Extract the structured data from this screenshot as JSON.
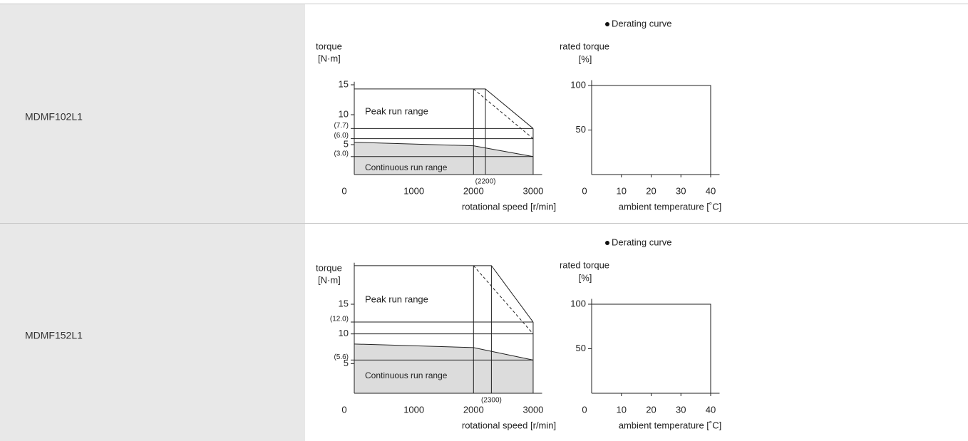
{
  "table": {
    "rows": [
      {
        "model": "MDMF102L1",
        "torque_chart": {
          "type": "line",
          "y_label": "torque",
          "y_unit": "[N·m]",
          "x_label": "rotational speed [r/min]",
          "xlim": [
            0,
            3150
          ],
          "ylim": [
            0,
            15.5
          ],
          "xticks": [
            0,
            1000,
            2000,
            {
              "value": 2200,
              "label": "(2200)"
            },
            3000
          ],
          "yticks": [
            {
              "value": 3.0,
              "label": "(3.0)"
            },
            5,
            {
              "value": 6.0,
              "label": "(6.0)"
            },
            {
              "value": 7.7,
              "label": "(7.7)"
            },
            10,
            15
          ],
          "peak": {
            "x": [
              0,
              2200,
              3000
            ],
            "y": [
              14.3,
              14.3,
              7.7
            ]
          },
          "peak_dashed": {
            "x": [
              2000,
              3000
            ],
            "y": [
              14.3,
              6.0
            ]
          },
          "continuous": {
            "x": [
              0,
              2000,
              3000
            ],
            "y": [
              5.4,
              4.8,
              3.0
            ]
          },
          "peak_label": "Peak run range",
          "continuous_label": "Continuous run range"
        },
        "derating_chart": {
          "type": "line",
          "title": "Derating curve",
          "y_label": "rated torque",
          "y_unit": "[%]",
          "x_label": "ambient temperature [˚C]",
          "xlim": [
            0,
            43
          ],
          "ylim": [
            0,
            106
          ],
          "xticks": [
            0,
            10,
            20,
            30,
            40
          ],
          "yticks": [
            50,
            100
          ],
          "x": [
            0,
            40,
            40
          ],
          "y": [
            100,
            100,
            0
          ]
        }
      },
      {
        "model": "MDMF152L1",
        "torque_chart": {
          "type": "line",
          "y_label": "torque",
          "y_unit": "[N·m]",
          "x_label": "rotational speed [r/min]",
          "xlim": [
            0,
            3150
          ],
          "ylim": [
            0,
            22
          ],
          "xticks": [
            0,
            1000,
            2000,
            {
              "value": 2300,
              "label": "(2300)"
            },
            3000
          ],
          "yticks": [
            5,
            {
              "value": 5.6,
              "label": "(5.6)"
            },
            10,
            {
              "value": 12.0,
              "label": "(12.0)"
            },
            15
          ],
          "peak": {
            "x": [
              0,
              2300,
              3000
            ],
            "y": [
              21.5,
              21.5,
              12.0
            ]
          },
          "peak_dashed": {
            "x": [
              2000,
              3000
            ],
            "y": [
              21.5,
              10
            ]
          },
          "continuous": {
            "x": [
              0,
              2000,
              3000
            ],
            "y": [
              8.3,
              7.7,
              5.6
            ]
          },
          "peak_label": "Peak run range",
          "continuous_label": "Continuous run range"
        },
        "derating_chart": {
          "type": "line",
          "title": "Derating curve",
          "y_label": "rated torque",
          "y_unit": "[%]",
          "x_label": "ambient temperature [˚C]",
          "xlim": [
            0,
            43
          ],
          "ylim": [
            0,
            106
          ],
          "xticks": [
            0,
            10,
            20,
            30,
            40
          ],
          "yticks": [
            50,
            100
          ],
          "x": [
            0,
            40,
            40
          ],
          "y": [
            100,
            100,
            0
          ]
        }
      }
    ]
  }
}
